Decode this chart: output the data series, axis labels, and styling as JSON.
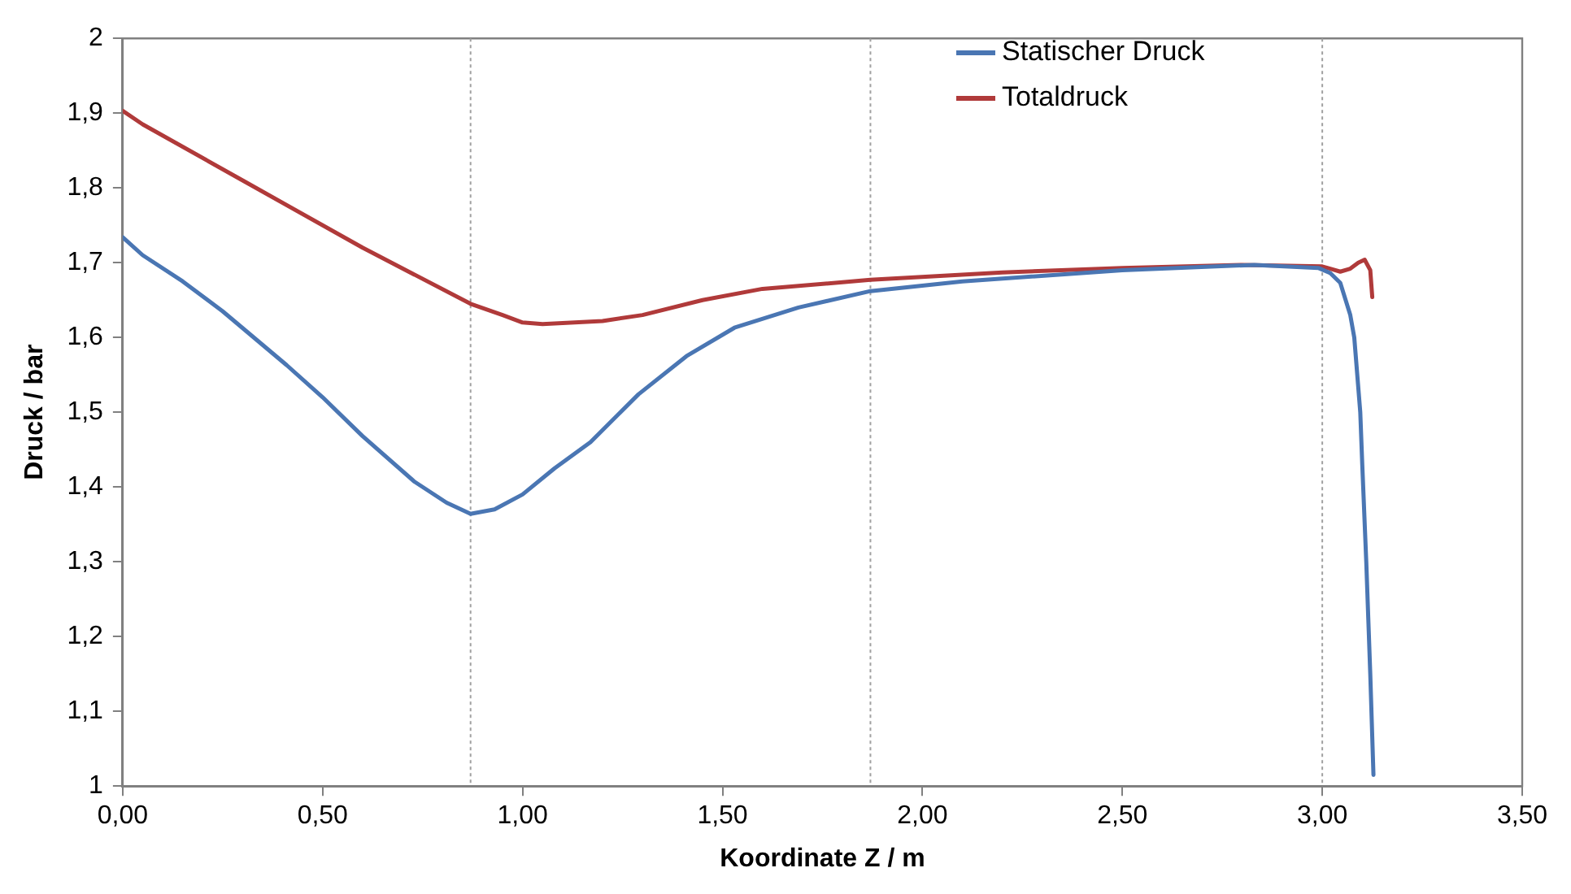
{
  "chart_data": {
    "type": "line",
    "xlabel": "Koordinate Z / m",
    "ylabel": "Druck / bar",
    "xlim": [
      0,
      3.5
    ],
    "xticks": [
      {
        "value": 0,
        "label": "0,00"
      },
      {
        "value": 0.5,
        "label": "0,50"
      },
      {
        "value": 1,
        "label": "1,00"
      },
      {
        "value": 1.5,
        "label": "1,50"
      },
      {
        "value": 2,
        "label": "2,00"
      },
      {
        "value": 2.5,
        "label": "2,50"
      },
      {
        "value": 3,
        "label": "3,00"
      },
      {
        "value": 3.5,
        "label": "3,50"
      }
    ],
    "ylim": [
      1,
      2
    ],
    "yticks": [
      1,
      {
        "value": 1.1,
        "label": "1,1"
      },
      {
        "value": 1.2,
        "label": "1,2"
      },
      {
        "value": 1.3,
        "label": "1,3"
      },
      {
        "value": 1.4,
        "label": "1,4"
      },
      {
        "value": 1.5,
        "label": "1,5"
      },
      {
        "value": 1.6,
        "label": "1,6"
      },
      {
        "value": 1.7,
        "label": "1,7"
      },
      {
        "value": 1.8,
        "label": "1,8"
      },
      {
        "value": 1.9,
        "label": "1,9"
      },
      2
    ],
    "grid": false,
    "legend": "top",
    "marker": "none",
    "line_style": "solid",
    "ref_lines": [
      {
        "axis": "x",
        "value": 0.87,
        "color": "#a0a0a0",
        "line_style": "dotted"
      },
      {
        "axis": "x",
        "value": 1.87,
        "color": "#a0a0a0",
        "line_style": "dotted"
      },
      {
        "axis": "x",
        "value": 3.0,
        "color": "#a0a0a0",
        "line_style": "dotted"
      }
    ],
    "series": [
      {
        "name": "Statischer Druck",
        "color": "#4a76b3",
        "x": [
          0,
          0.05,
          0.15,
          0.25,
          0.41,
          0.5,
          0.6,
          0.73,
          0.81,
          0.87,
          0.93,
          1.0,
          1.08,
          1.17,
          1.29,
          1.41,
          1.53,
          1.69,
          1.87,
          2.1,
          2.5,
          2.83,
          2.99,
          3.02,
          3.045,
          3.07,
          3.08,
          3.095,
          3.1,
          3.11,
          3.12,
          3.128
        ],
        "values": [
          1.734,
          1.71,
          1.675,
          1.635,
          1.563,
          1.52,
          1.468,
          1.407,
          1.379,
          1.364,
          1.37,
          1.39,
          1.425,
          1.46,
          1.524,
          1.575,
          1.613,
          1.64,
          1.662,
          1.675,
          1.69,
          1.697,
          1.693,
          1.686,
          1.673,
          1.63,
          1.6,
          1.5,
          1.43,
          1.3,
          1.15,
          1.015
        ]
      },
      {
        "name": "Totaldruck",
        "color": "#b03a3a",
        "x": [
          0,
          0.05,
          0.3,
          0.6,
          0.87,
          0.95,
          1.0,
          1.05,
          1.2,
          1.3,
          1.45,
          1.6,
          1.87,
          2.2,
          2.5,
          2.8,
          3.0,
          3.02,
          3.045,
          3.07,
          3.09,
          3.106,
          3.12,
          3.125
        ],
        "values": [
          1.903,
          1.885,
          1.81,
          1.72,
          1.645,
          1.63,
          1.62,
          1.618,
          1.622,
          1.63,
          1.65,
          1.665,
          1.677,
          1.687,
          1.693,
          1.697,
          1.695,
          1.692,
          1.688,
          1.692,
          1.7,
          1.704,
          1.69,
          1.654
        ]
      }
    ]
  }
}
